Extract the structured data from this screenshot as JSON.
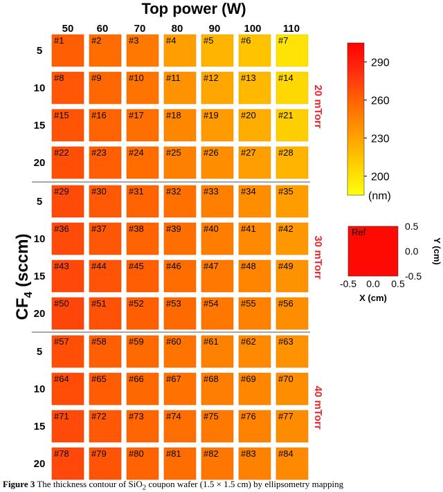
{
  "chart_data": {
    "type": "heatmap",
    "title": "Top power (W)",
    "xlabel": "Top power (W)",
    "ylabel": "CF4 (sccm)",
    "ylabel_main": "CF",
    "ylabel_sub": "4",
    "ylabel_rest": " (sccm)",
    "x_categories": [
      "50",
      "60",
      "70",
      "80",
      "90",
      "100",
      "110"
    ],
    "groups": [
      {
        "name": "20 mTorr",
        "rows": [
          "5",
          "10",
          "15",
          "20"
        ],
        "labels": [
          [
            "#1",
            "#2",
            "#3",
            "#4",
            "#5",
            "#6",
            "#7"
          ],
          [
            "#8",
            "#9",
            "#10",
            "#11",
            "#12",
            "#13",
            "#14"
          ],
          [
            "#15",
            "#16",
            "#17",
            "#18",
            "#19",
            "#20",
            "#21"
          ],
          [
            "#22",
            "#23",
            "#24",
            "#25",
            "#26",
            "#27",
            "#28"
          ]
        ],
        "values": [
          [
            262,
            256,
            250,
            232,
            222,
            215,
            200
          ],
          [
            265,
            258,
            252,
            238,
            228,
            220,
            205
          ],
          [
            266,
            260,
            255,
            243,
            234,
            225,
            210
          ],
          [
            268,
            262,
            256,
            247,
            240,
            232,
            222
          ]
        ]
      },
      {
        "name": "30 mTorr",
        "rows": [
          "5",
          "10",
          "15",
          "20"
        ],
        "labels": [
          [
            "#29",
            "#30",
            "#31",
            "#32",
            "#33",
            "#34",
            "#35"
          ],
          [
            "#36",
            "#37",
            "#38",
            "#39",
            "#40",
            "#41",
            "#42"
          ],
          [
            "#43",
            "#44",
            "#45",
            "#46",
            "#47",
            "#48",
            "#49"
          ],
          [
            "#50",
            "#51",
            "#52",
            "#53",
            "#54",
            "#55",
            "#56"
          ]
        ],
        "values": [
          [
            270,
            264,
            260,
            254,
            247,
            240,
            233
          ],
          [
            270,
            265,
            260,
            255,
            248,
            242,
            235
          ],
          [
            271,
            266,
            262,
            256,
            250,
            244,
            238
          ],
          [
            272,
            267,
            262,
            257,
            251,
            246,
            240
          ]
        ]
      },
      {
        "name": "40 mTorr",
        "rows": [
          "5",
          "10",
          "15",
          "20"
        ],
        "labels": [
          [
            "#57",
            "#58",
            "#59",
            "#60",
            "#61",
            "#62",
            "#63"
          ],
          [
            "#64",
            "#65",
            "#66",
            "#67",
            "#68",
            "#69",
            "#70"
          ],
          [
            "#71",
            "#72",
            "#73",
            "#74",
            "#75",
            "#76",
            "#77"
          ],
          [
            "#78",
            "#79",
            "#80",
            "#81",
            "#82",
            "#83",
            "#84"
          ]
        ],
        "values": [
          [
            268,
            262,
            257,
            252,
            246,
            242,
            238
          ],
          [
            269,
            263,
            258,
            253,
            248,
            243,
            240
          ],
          [
            270,
            264,
            259,
            255,
            250,
            245,
            241
          ],
          [
            271,
            266,
            260,
            256,
            251,
            246,
            242
          ]
        ]
      }
    ],
    "colorbar": {
      "min": 185,
      "max": 305,
      "ticks": [
        200,
        230,
        260,
        290
      ],
      "unit": "(nm)",
      "colors": [
        "#ffff10",
        "#ffd000",
        "#ff9c00",
        "#ff6a00",
        "#ff3010",
        "#ff0000"
      ]
    },
    "reference": {
      "label": "Ref",
      "value": 300,
      "x_ticks": [
        "-0.5",
        "0.0",
        "0.5"
      ],
      "y_ticks": [
        "0.5",
        "0.0",
        "-0.5"
      ],
      "xlabel": "X (cm)",
      "ylabel": "Y (cm)"
    }
  },
  "caption": {
    "label": "Figure 3",
    "text": " The thickness contour of SiO",
    "sub": "2",
    "rest": " coupon wafer (1.5 × 1.5 cm) by ellipsometry mapping"
  }
}
